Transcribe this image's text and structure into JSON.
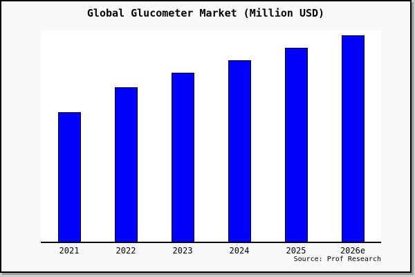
{
  "title": "Global Glucometer Market (Million USD)",
  "source": "Source: Prof Research",
  "colors": {
    "bar_fill": "#0000fb",
    "bar_border": "#000000",
    "plot_bg": "#ffffff",
    "page_bg": "#f8f8f8",
    "frame_border": "#000000",
    "shadow": "#9c9c9c",
    "text": "#000000"
  },
  "chart_data": {
    "type": "bar",
    "title": "Global Glucometer Market (Million USD)",
    "categories": [
      "2021",
      "2022",
      "2023",
      "2024",
      "2025",
      "2026e"
    ],
    "values": [
      63,
      75,
      82,
      88,
      94,
      100
    ],
    "units": "relative index (y-axis unlabeled; tallest bar 2026e = 100)",
    "xlabel": "",
    "ylabel": "",
    "ylim": [
      0,
      102
    ],
    "grid": false,
    "legend": false,
    "annotations": [
      "Source: Prof Research"
    ]
  }
}
